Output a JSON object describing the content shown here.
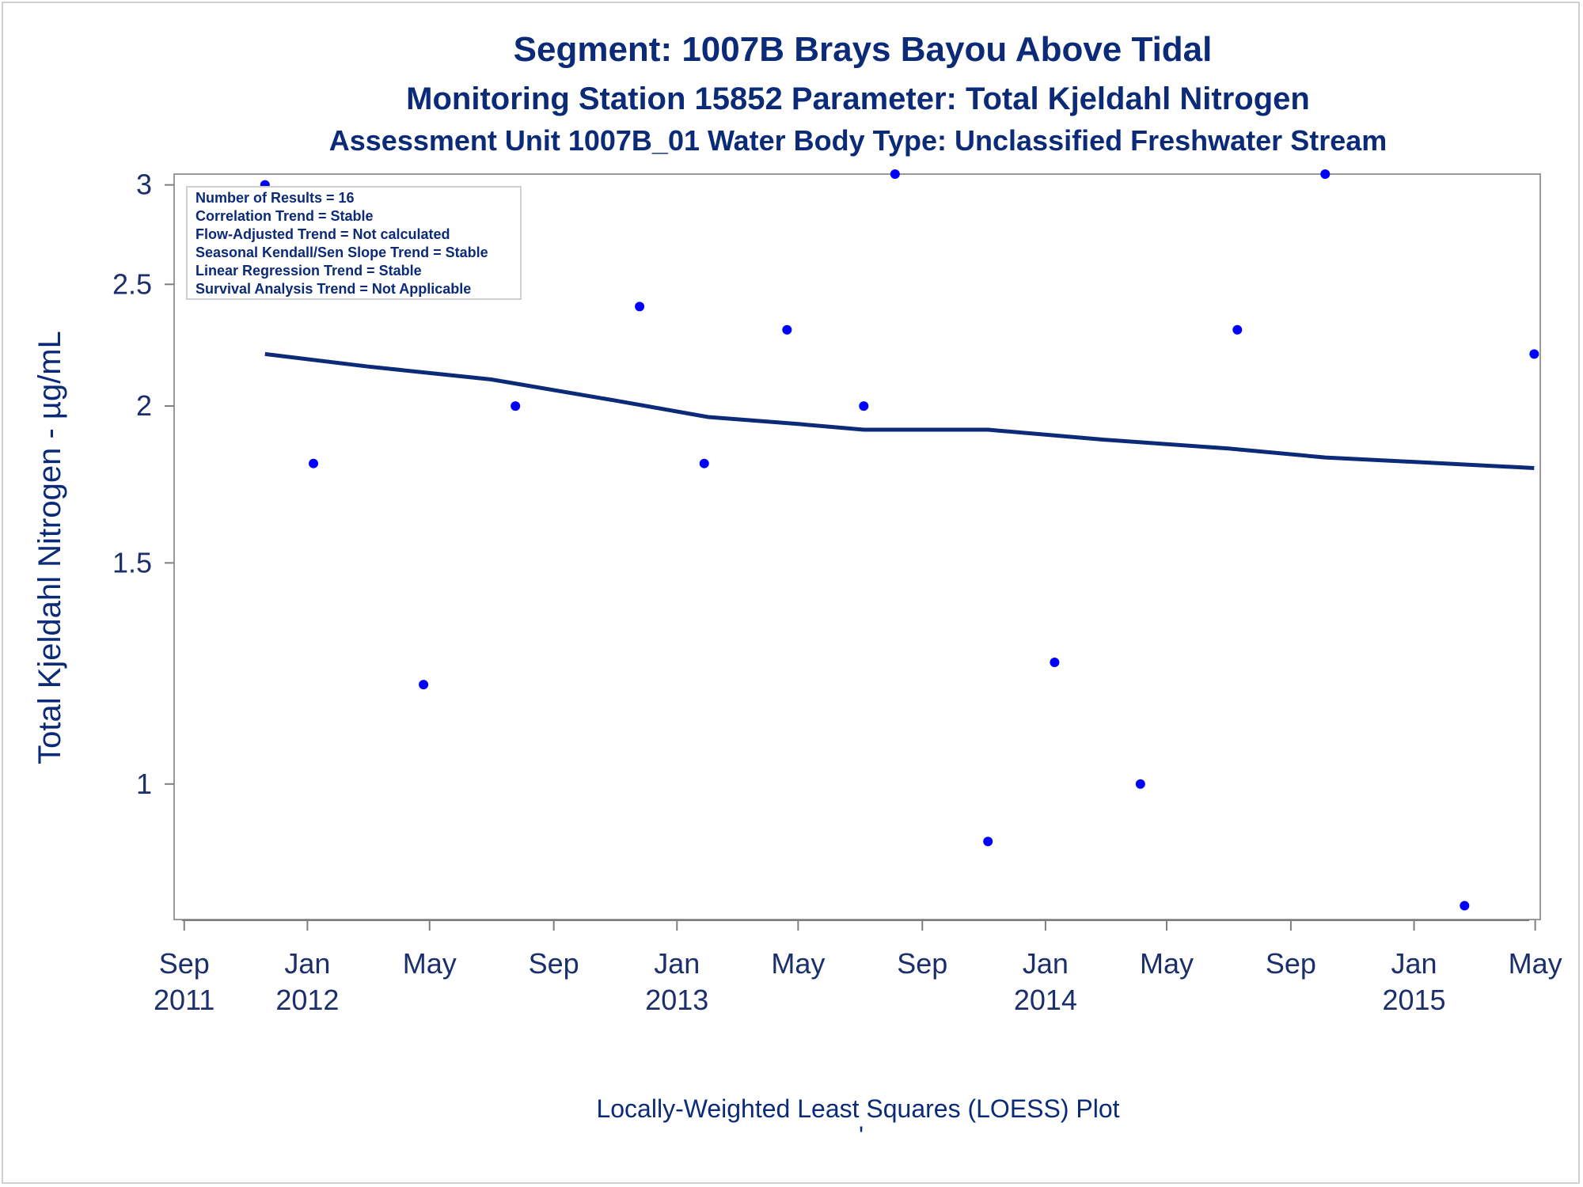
{
  "chart_data": {
    "type": "scatter",
    "title": "Segment: 1007B  Brays Bayou Above Tidal",
    "subtitle": "Monitoring Station 15852 Parameter: Total Kjeldahl Nitrogen",
    "subtitle2": "Assessment Unit 1007B_01   Water Body Type: Unclassified Freshwater Stream",
    "ylabel": "Total Kjeldahl Nitrogen -  µg/mL",
    "xlabel": "",
    "footer": "Locally-Weighted Least Squares (LOESS) Plot",
    "footer_mark": "'",
    "ylim": [
      0.78,
      3.06
    ],
    "y_scale": "log",
    "yticks": [
      {
        "value": 1,
        "label": "1"
      },
      {
        "value": 1.5,
        "label": "1.5"
      },
      {
        "value": 2,
        "label": "2"
      },
      {
        "value": 2.5,
        "label": "2.5"
      },
      {
        "value": 3,
        "label": "3"
      }
    ],
    "xlim": [
      "2011-08-22",
      "2015-05-06"
    ],
    "xticks": [
      {
        "date": "2011-09-01",
        "month": "Sep",
        "year": "2011"
      },
      {
        "date": "2012-01-01",
        "month": "Jan",
        "year": "2012"
      },
      {
        "date": "2012-05-01",
        "month": "May",
        "year": ""
      },
      {
        "date": "2012-09-01",
        "month": "Sep",
        "year": ""
      },
      {
        "date": "2013-01-01",
        "month": "Jan",
        "year": "2013"
      },
      {
        "date": "2013-05-01",
        "month": "May",
        "year": ""
      },
      {
        "date": "2013-09-01",
        "month": "Sep",
        "year": ""
      },
      {
        "date": "2014-01-01",
        "month": "Jan",
        "year": "2014"
      },
      {
        "date": "2014-05-01",
        "month": "May",
        "year": ""
      },
      {
        "date": "2014-09-01",
        "month": "Sep",
        "year": ""
      },
      {
        "date": "2015-01-01",
        "month": "Jan",
        "year": "2015"
      },
      {
        "date": "2015-05-01",
        "month": "May",
        "year": ""
      }
    ],
    "points": [
      {
        "date": "2011-11-20",
        "y": 3.0
      },
      {
        "date": "2012-01-07",
        "y": 1.8
      },
      {
        "date": "2012-04-25",
        "y": 1.2
      },
      {
        "date": "2012-07-25",
        "y": 2.0
      },
      {
        "date": "2012-11-25",
        "y": 2.4
      },
      {
        "date": "2013-01-28",
        "y": 1.8
      },
      {
        "date": "2013-04-20",
        "y": 2.3
      },
      {
        "date": "2013-07-05",
        "y": 2.0
      },
      {
        "date": "2013-08-05",
        "y": 3.06
      },
      {
        "date": "2013-11-05",
        "y": 0.9
      },
      {
        "date": "2014-01-10",
        "y": 1.25
      },
      {
        "date": "2014-04-05",
        "y": 1.0
      },
      {
        "date": "2014-07-10",
        "y": 2.3
      },
      {
        "date": "2014-10-05",
        "y": 3.06
      },
      {
        "date": "2015-02-20",
        "y": 0.8
      },
      {
        "date": "2015-04-30",
        "y": 2.2
      }
    ],
    "loess": [
      {
        "date": "2011-11-20",
        "y": 2.2
      },
      {
        "date": "2012-03-01",
        "y": 2.15
      },
      {
        "date": "2012-07-01",
        "y": 2.1
      },
      {
        "date": "2012-11-01",
        "y": 2.02
      },
      {
        "date": "2013-02-01",
        "y": 1.96
      },
      {
        "date": "2013-05-01",
        "y": 1.935
      },
      {
        "date": "2013-07-05",
        "y": 1.915
      },
      {
        "date": "2013-11-05",
        "y": 1.915
      },
      {
        "date": "2014-03-01",
        "y": 1.88
      },
      {
        "date": "2014-07-01",
        "y": 1.85
      },
      {
        "date": "2014-10-05",
        "y": 1.82
      },
      {
        "date": "2015-02-01",
        "y": 1.8
      },
      {
        "date": "2015-04-30",
        "y": 1.785
      }
    ],
    "legend": {
      "placement": "top-left",
      "entries": [
        "Number of Results = 16",
        "Correlation Trend = Stable",
        "Flow-Adjusted Trend = Not calculated",
        "Seasonal Kendall/Sen Slope Trend = Stable",
        "Linear Regression Trend = Stable",
        "Survival Analysis Trend = Not Applicable"
      ]
    },
    "colors": {
      "title": "#0b2a78",
      "point": "#0000ff",
      "line": "#0b2a78",
      "axis": "#7f7f7f"
    },
    "grid": false
  }
}
